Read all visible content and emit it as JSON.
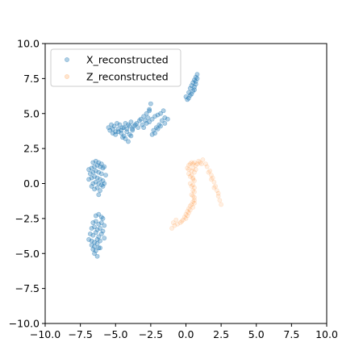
{
  "chart_data": {
    "type": "scatter",
    "title": "",
    "xlabel": "",
    "ylabel": "",
    "xlim": [
      -10,
      10
    ],
    "ylim": [
      -10,
      10
    ],
    "xticks": [
      -10,
      -7.5,
      -5,
      -2.5,
      0,
      2.5,
      5,
      7.5,
      10
    ],
    "yticks": [
      -10,
      -7.5,
      -5,
      -2.5,
      0,
      2.5,
      5,
      7.5,
      10
    ],
    "xtick_labels": [
      "−10.0",
      "−7.5",
      "−5.0",
      "−2.5",
      "0.0",
      "2.5",
      "5.0",
      "7.5",
      "10.0"
    ],
    "ytick_labels": [
      "−10.0",
      "−7.5",
      "−5.0",
      "−2.5",
      "0.0",
      "2.5",
      "5.0",
      "7.5",
      "10.0"
    ],
    "grid": false,
    "legend_position": "top-left",
    "series": [
      {
        "name": "X_reconstructed",
        "color": "#1f77b4",
        "alpha": 0.35,
        "x": [
          -6.6,
          -6.4,
          -6.2,
          -6.0,
          -5.8,
          -6.9,
          -6.7,
          -6.5,
          -6.3,
          -6.1,
          -5.9,
          -6.8,
          -6.6,
          -6.4,
          -6.2,
          -6.0,
          -5.7,
          -6.9,
          -6.7,
          -6.5,
          -6.3,
          -6.1,
          -5.9,
          -6.6,
          -6.4,
          -6.2,
          -6.0,
          -5.8,
          -6.5,
          -6.3,
          -6.1,
          -5.9,
          -6.7,
          -6.2,
          -6.4,
          -6.2,
          -6.0,
          -5.9,
          -6.6,
          -6.4,
          -6.2,
          -6.0,
          -5.8,
          -6.7,
          -6.5,
          -6.3,
          -6.1,
          -5.9,
          -6.8,
          -6.6,
          -6.4,
          -6.2,
          -6.0,
          -5.8,
          -6.9,
          -6.7,
          -6.5,
          -6.3,
          -6.1,
          -6.7,
          -6.5,
          -6.3,
          -6.1,
          -6.6,
          -6.4,
          -6.2,
          -6.5,
          -6.3,
          -5.5,
          -5.3,
          -5.1,
          -4.9,
          -4.7,
          -4.5,
          -4.3,
          -4.1,
          -3.9,
          -3.7,
          -3.5,
          -3.3,
          -5.4,
          -5.2,
          -5.0,
          -4.8,
          -4.6,
          -4.4,
          -4.2,
          -4.0,
          -3.8,
          -3.6,
          -3.4,
          -5.2,
          -5.0,
          -4.8,
          -4.6,
          -4.4,
          -4.2,
          -4.0,
          -3.8,
          -4.5,
          -4.3,
          -4.1,
          -3.9,
          -3.2,
          -3.0,
          -2.8,
          -2.6,
          -2.5,
          -3.1,
          -2.9,
          -2.7,
          -2.6,
          -3.0,
          -2.8,
          -2.6,
          -2.4,
          -2.2,
          -2.0,
          -1.8,
          -1.6,
          -2.3,
          -2.1,
          -1.9,
          -1.7,
          -1.5,
          -2.4,
          -2.2,
          -2.0,
          -1.8,
          -1.5,
          -1.3,
          0.0,
          0.2,
          0.3,
          0.4,
          0.5,
          0.6,
          0.7,
          0.8,
          0.8,
          0.1,
          0.3,
          0.5,
          0.6,
          0.7,
          0.2,
          0.4,
          0.6,
          0.7
        ],
        "y": [
          1.5,
          1.6,
          1.5,
          1.4,
          1.2,
          1.0,
          1.1,
          1.2,
          1.3,
          1.2,
          1.1,
          0.7,
          0.8,
          0.9,
          0.8,
          0.7,
          0.6,
          0.3,
          0.4,
          0.5,
          0.4,
          0.3,
          0.2,
          0.0,
          0.1,
          0.0,
          -0.1,
          0.0,
          -0.4,
          -0.3,
          -0.5,
          -0.2,
          -0.2,
          -0.8,
          -2.3,
          -2.2,
          -2.4,
          -2.5,
          -2.8,
          -2.7,
          -2.9,
          -2.8,
          -3.0,
          -3.2,
          -3.1,
          -3.3,
          -3.2,
          -3.4,
          -3.6,
          -3.7,
          -3.5,
          -3.8,
          -3.6,
          -3.9,
          -4.0,
          -4.1,
          -4.2,
          -4.0,
          -4.1,
          -4.4,
          -4.5,
          -4.3,
          -4.6,
          -4.7,
          -4.8,
          -4.6,
          -5.0,
          -5.2,
          4.0,
          4.2,
          4.1,
          4.3,
          4.2,
          4.0,
          4.3,
          4.2,
          4.4,
          4.1,
          4.3,
          4.5,
          3.8,
          3.9,
          3.7,
          3.9,
          3.8,
          4.0,
          3.9,
          4.1,
          3.9,
          4.2,
          4.0,
          3.6,
          3.5,
          3.7,
          3.6,
          3.4,
          3.7,
          3.5,
          3.8,
          3.3,
          3.2,
          3.0,
          3.4,
          4.6,
          4.8,
          5.0,
          5.3,
          5.7,
          4.2,
          4.5,
          4.7,
          5.2,
          4.0,
          4.3,
          4.4,
          4.6,
          4.8,
          4.9,
          5.0,
          5.2,
          3.8,
          4.0,
          4.2,
          4.5,
          4.7,
          3.5,
          3.6,
          3.9,
          4.1,
          4.3,
          4.6,
          6.2,
          6.5,
          6.8,
          7.0,
          7.2,
          7.4,
          7.6,
          7.8,
          7.5,
          6.0,
          6.3,
          6.6,
          6.9,
          7.1,
          6.1,
          6.4,
          6.7,
          7.3
        ]
      },
      {
        "name": "Z_reconstructed",
        "color": "#ff7f0e",
        "alpha": 0.12,
        "x": [
          0.2,
          0.3,
          0.4,
          0.5,
          0.6,
          0.7,
          0.8,
          0.9,
          1.0,
          1.1,
          0.1,
          0.2,
          0.4,
          0.5,
          0.6,
          0.7,
          0.2,
          0.3,
          0.4,
          0.5,
          0.5,
          0.6,
          0.3,
          0.4,
          0.5,
          0.6,
          0.5,
          0.6,
          0.4,
          0.5,
          0.6,
          0.6,
          0.5,
          0.6,
          0.4,
          0.3,
          0.5,
          0.2,
          0.3,
          0.1,
          0.2,
          0.0,
          0.1,
          -0.1,
          0.0,
          -0.2,
          -0.3,
          -0.4,
          -0.6,
          -0.8,
          -1.0,
          -0.9,
          -0.7,
          1.2,
          1.4,
          1.5,
          1.7,
          1.8,
          1.9,
          2.0,
          2.1,
          2.2,
          2.3,
          2.3,
          2.4,
          2.5,
          1.6,
          1.8,
          2.0
        ],
        "y": [
          1.3,
          1.4,
          1.5,
          1.4,
          1.5,
          1.3,
          1.4,
          1.6,
          1.5,
          1.4,
          1.1,
          1.0,
          0.9,
          1.1,
          0.8,
          1.0,
          0.7,
          0.5,
          0.6,
          0.3,
          0.4,
          0.2,
          0.0,
          -0.2,
          -0.1,
          -0.3,
          -0.5,
          -0.6,
          -0.8,
          -0.9,
          -1.0,
          -1.2,
          -1.3,
          -1.4,
          -1.5,
          -1.6,
          -1.7,
          -1.8,
          -1.9,
          -2.0,
          -2.1,
          -2.2,
          -2.3,
          -2.4,
          -2.5,
          -2.6,
          -2.7,
          -2.8,
          -2.9,
          -3.0,
          -3.2,
          -2.8,
          -2.6,
          1.7,
          1.4,
          1.2,
          0.9,
          0.6,
          0.4,
          0.1,
          -0.2,
          -0.5,
          -0.7,
          -0.9,
          -1.2,
          -1.5,
          0.8,
          0.3,
          -0.3
        ]
      }
    ]
  }
}
